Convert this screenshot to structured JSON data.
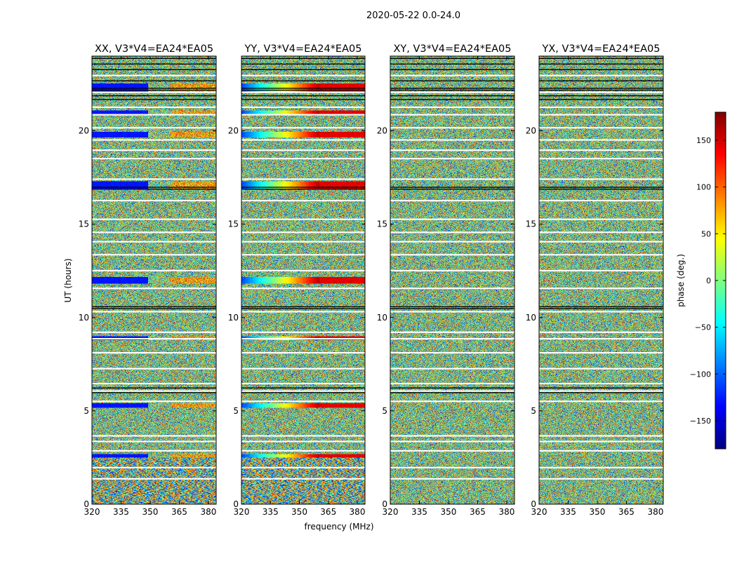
{
  "figure": {
    "suptitle": "2020-05-22 0.0-24.0",
    "xlabel": "frequency (MHz)",
    "ylabel": "UT (hours)"
  },
  "colorbar": {
    "label": "phase (deg.)",
    "range": [
      -180,
      180
    ],
    "ticks": [
      -150,
      -100,
      -50,
      0,
      50,
      100,
      150
    ],
    "tick_labels": [
      "−150",
      "−100",
      "−50",
      "0",
      "50",
      "100",
      "150"
    ],
    "colormap": "jet"
  },
  "chart_data": [
    {
      "type": "heatmap",
      "title": "XX, V3*V4=EA24*EA05",
      "xlim": [
        320,
        384
      ],
      "ylim": [
        0,
        24
      ],
      "xticks": [
        320,
        335,
        350,
        365,
        380
      ],
      "yticks": [
        0,
        5,
        10,
        15,
        20
      ],
      "value": "phase (deg.)",
      "description": "noisy phase with coherent phase bands at ~2.6, 5.3, 12, 17 and 22.5 UT"
    },
    {
      "type": "heatmap",
      "title": "YY, V3*V4=EA24*EA05",
      "xlim": [
        320,
        384
      ],
      "ylim": [
        0,
        24
      ],
      "xticks": [
        320,
        335,
        350,
        365,
        380
      ],
      "yticks": [
        0,
        5,
        10,
        15,
        20
      ],
      "value": "phase (deg.)",
      "description": "noisy phase with coherent red/blue bands at ~2.6, 5.3, 12, 17 and 22.5 UT"
    },
    {
      "type": "heatmap",
      "title": "XY, V3*V4=EA24*EA05",
      "xlim": [
        320,
        384
      ],
      "ylim": [
        0,
        24
      ],
      "xticks": [
        320,
        335,
        350,
        365,
        380
      ],
      "yticks": [
        0,
        5,
        10,
        15,
        20
      ],
      "value": "phase (deg.)",
      "description": "mostly random phase noise"
    },
    {
      "type": "heatmap",
      "title": "YX, V3*V4=EA24*EA05",
      "xlim": [
        320,
        384
      ],
      "ylim": [
        0,
        24
      ],
      "xticks": [
        320,
        335,
        350,
        365,
        380
      ],
      "yticks": [
        0,
        5,
        10,
        15,
        20
      ],
      "value": "phase (deg.)",
      "description": "mostly random phase noise"
    }
  ]
}
